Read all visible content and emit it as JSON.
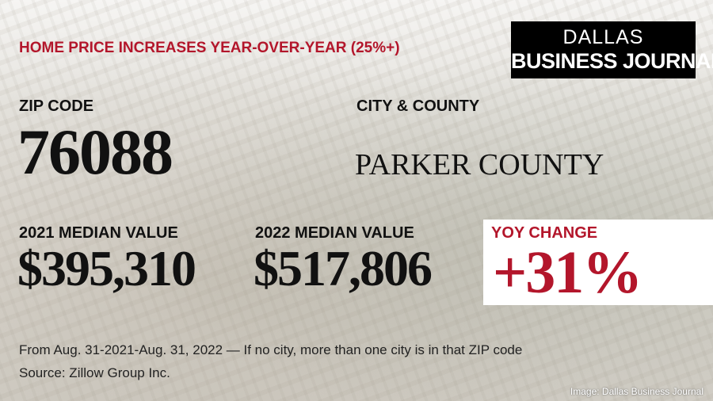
{
  "header": {
    "title": "HOME PRICE INCREASES YEAR-OVER-YEAR (25%+)"
  },
  "logo": {
    "line1": "DALLAS",
    "line2": "BUSINESS JOURNAL"
  },
  "zip": {
    "label": "ZIP CODE",
    "value": "76088"
  },
  "city": {
    "label": "CITY & COUNTY",
    "value": "PARKER COUNTY"
  },
  "median_2021": {
    "label": "2021 MEDIAN VALUE",
    "value": "$395,310"
  },
  "median_2022": {
    "label": "2022 MEDIAN VALUE",
    "value": "$517,806"
  },
  "yoy": {
    "label": "YOY CHANGE",
    "value": "+31%"
  },
  "footnote": "From Aug. 31-2021-Aug. 31, 2022 — If no city, more than one city is in that ZIP code",
  "source": "Source:  Zillow Group Inc.",
  "credit": "Image: Dallas Business Journal"
}
